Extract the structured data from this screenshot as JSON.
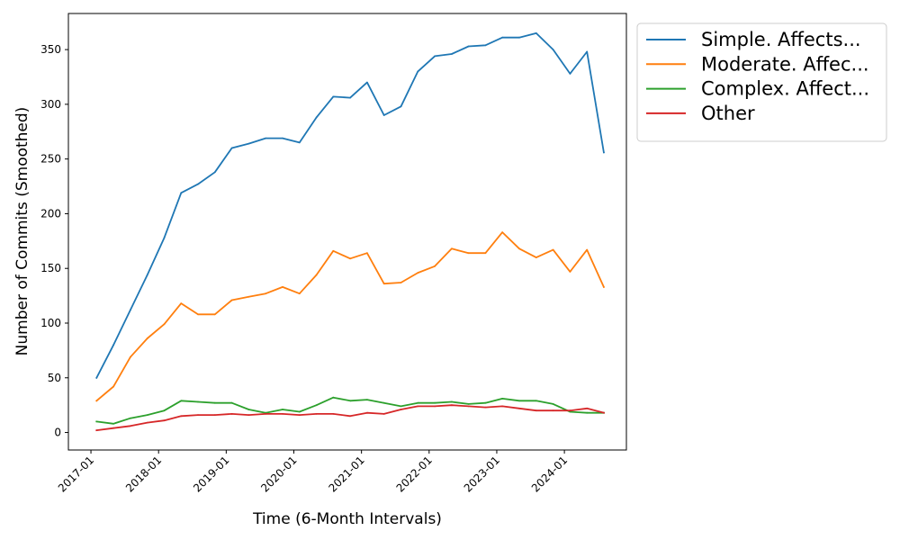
{
  "chart_data": {
    "type": "line",
    "xlabel": "Time (6-Month Intervals)",
    "ylabel": "Number of Commits (Smoothed)",
    "x_tick_labels": [
      "2017-01",
      "2018-01",
      "2019-01",
      "2020-01",
      "2021-01",
      "2022-01",
      "2023-01",
      "2024-01"
    ],
    "y_tick_labels": [
      "0",
      "50",
      "100",
      "150",
      "200",
      "250",
      "300",
      "350"
    ],
    "y_ticks": [
      0,
      50,
      100,
      150,
      200,
      250,
      300,
      350
    ],
    "ylim": [
      -16,
      383
    ],
    "xlim": [
      "2016-09",
      "2024-12"
    ],
    "grid": false,
    "legend_position": "outside-top-right",
    "x": [
      "2017-02",
      "2017-05",
      "2017-08",
      "2017-11",
      "2018-02",
      "2018-05",
      "2018-08",
      "2018-11",
      "2019-02",
      "2019-05",
      "2019-08",
      "2019-11",
      "2020-02",
      "2020-05",
      "2020-08",
      "2020-11",
      "2021-02",
      "2021-05",
      "2021-08",
      "2021-11",
      "2022-02",
      "2022-05",
      "2022-08",
      "2022-11",
      "2023-02",
      "2023-05",
      "2023-08",
      "2023-11",
      "2024-02",
      "2024-05",
      "2024-08"
    ],
    "series": [
      {
        "name": "Simple. Affects...",
        "color": "#1f77b4",
        "values": [
          50,
          80,
          112,
          144,
          178,
          219,
          227,
          238,
          260,
          264,
          269,
          269,
          265,
          288,
          307,
          306,
          320,
          290,
          298,
          330,
          344,
          346,
          353,
          354,
          361,
          361,
          365,
          350,
          328,
          348,
          256
        ]
      },
      {
        "name": "Moderate. Affec...",
        "color": "#ff7f0e",
        "values": [
          29,
          42,
          69,
          86,
          99,
          118,
          108,
          108,
          121,
          124,
          127,
          133,
          127,
          144,
          166,
          159,
          164,
          136,
          137,
          146,
          152,
          168,
          164,
          164,
          183,
          168,
          160,
          167,
          147,
          167,
          133
        ]
      },
      {
        "name": "Complex. Affect...",
        "color": "#2ca02c",
        "values": [
          10,
          8,
          13,
          16,
          20,
          29,
          28,
          27,
          27,
          21,
          18,
          21,
          19,
          25,
          32,
          29,
          30,
          27,
          24,
          27,
          27,
          28,
          26,
          27,
          31,
          29,
          29,
          26,
          19,
          18,
          18
        ]
      },
      {
        "name": "Other",
        "color": "#d62728",
        "values": [
          2,
          4,
          6,
          9,
          11,
          15,
          16,
          16,
          17,
          16,
          17,
          17,
          16,
          17,
          17,
          15,
          18,
          17,
          21,
          24,
          24,
          25,
          24,
          23,
          24,
          22,
          20,
          20,
          20,
          22,
          18
        ]
      }
    ]
  }
}
